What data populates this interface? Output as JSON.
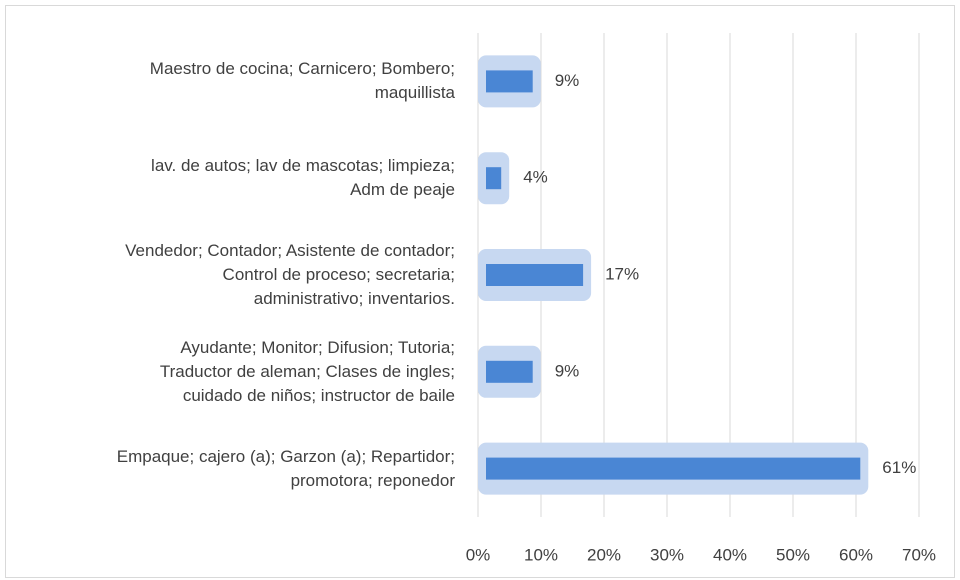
{
  "chart_data": {
    "type": "bar",
    "orientation": "horizontal",
    "categories": [
      "Maestro de cocina; Carnicero; Bombero;\nmaquillista",
      "lav. de autos; lav de mascotas; limpieza;\nAdm de peaje",
      "Vendedor; Contador; Asistente de contador;\nControl de proceso; secretaria;\nadministrativo; inventarios.",
      "Ayudante; Monitor; Difusion; Tutoria;\nTraductor de aleman; Clases de ingles;\ncuidado de niños; instructor de baile",
      "Empaque; cajero (a); Garzon (a); Repartidor;\npromotora; reponedor"
    ],
    "values": [
      9,
      4,
      17,
      9,
      61
    ],
    "value_labels": [
      "9%",
      "4%",
      "17%",
      "9%",
      "61%"
    ],
    "color": "#4a86d4",
    "glow_color": "#c7d8f1",
    "xlim": [
      0,
      70
    ],
    "xticks": [
      {
        "value": 0,
        "label": "0%"
      },
      {
        "value": 10,
        "label": "10%"
      },
      {
        "value": 20,
        "label": "20%"
      },
      {
        "value": 30,
        "label": "30%"
      },
      {
        "value": 40,
        "label": "40%"
      },
      {
        "value": 50,
        "label": "50%"
      },
      {
        "value": 60,
        "label": "60%"
      },
      {
        "value": 70,
        "label": "70%"
      }
    ],
    "grid": true
  }
}
